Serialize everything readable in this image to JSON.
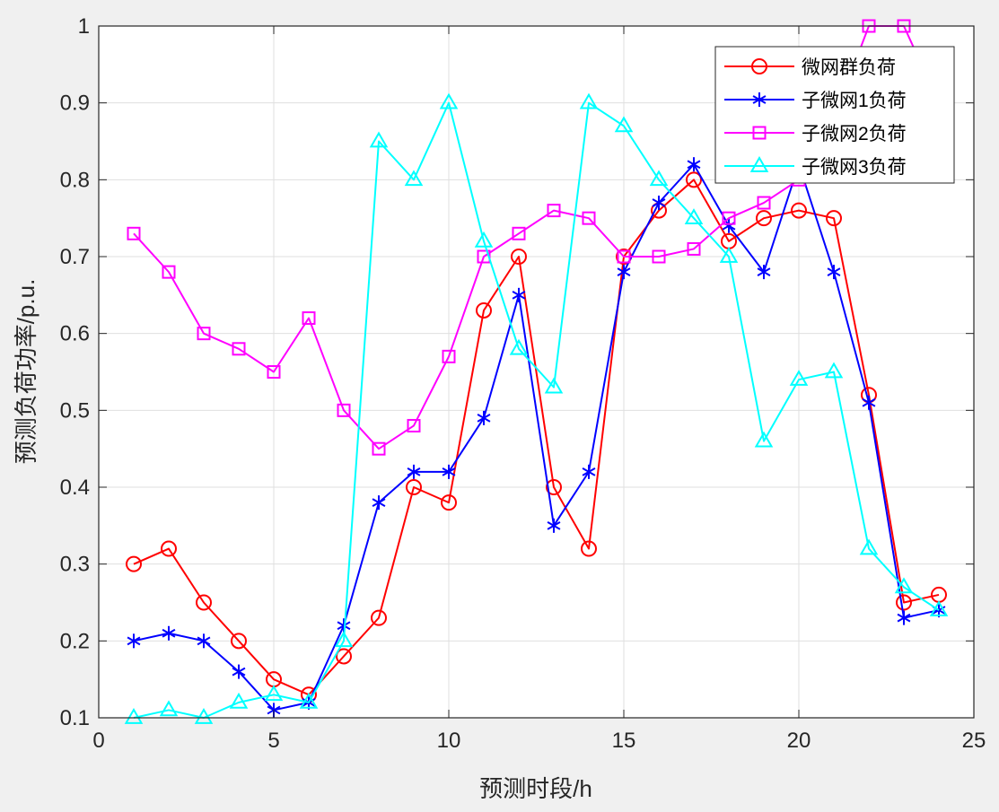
{
  "chart_data": {
    "type": "line",
    "title": "",
    "xlabel": "预测时段/h",
    "ylabel": "预测负荷功率/p.u.",
    "xlim": [
      0,
      25
    ],
    "ylim": [
      0.1,
      1
    ],
    "xticks": [
      0,
      5,
      10,
      15,
      20,
      25
    ],
    "yticks": [
      0.1,
      0.2,
      0.3,
      0.4,
      0.5,
      0.6,
      0.7,
      0.8,
      0.9,
      1
    ],
    "grid": true,
    "legend_position": "top-right",
    "x": [
      1,
      2,
      3,
      4,
      5,
      6,
      7,
      8,
      9,
      10,
      11,
      12,
      13,
      14,
      15,
      16,
      17,
      18,
      19,
      20,
      21,
      22,
      23,
      24
    ],
    "series": [
      {
        "name": "微网群负荷",
        "color": "#ff0000",
        "marker": "circle",
        "values": [
          0.3,
          0.32,
          0.25,
          0.2,
          0.15,
          0.13,
          0.18,
          0.23,
          0.4,
          0.38,
          0.63,
          0.7,
          0.4,
          0.32,
          0.7,
          0.76,
          0.8,
          0.72,
          0.75,
          0.76,
          0.75,
          0.52,
          0.25,
          0.26
        ]
      },
      {
        "name": "子微网1负荷",
        "color": "#0000ff",
        "marker": "asterisk",
        "values": [
          0.2,
          0.21,
          0.2,
          0.16,
          0.11,
          0.12,
          0.22,
          0.38,
          0.42,
          0.42,
          0.49,
          0.65,
          0.35,
          0.42,
          0.68,
          0.77,
          0.82,
          0.74,
          0.68,
          0.82,
          0.68,
          0.51,
          0.23,
          0.24
        ]
      },
      {
        "name": "子微网2负荷",
        "color": "#ff00ff",
        "marker": "square",
        "values": [
          0.73,
          0.68,
          0.6,
          0.58,
          0.55,
          0.62,
          0.5,
          0.45,
          0.48,
          0.57,
          0.7,
          0.73,
          0.76,
          0.75,
          0.7,
          0.7,
          0.71,
          0.75,
          0.77,
          0.8,
          0.88,
          1.0,
          1.0,
          0.9
        ]
      },
      {
        "name": "子微网3负荷",
        "color": "#00ffff",
        "marker": "triangle",
        "values": [
          0.1,
          0.11,
          0.1,
          0.12,
          0.13,
          0.12,
          0.2,
          0.85,
          0.8,
          0.9,
          0.72,
          0.58,
          0.53,
          0.9,
          0.87,
          0.8,
          0.75,
          0.7,
          0.46,
          0.54,
          0.55,
          0.32,
          0.27,
          0.24
        ]
      }
    ]
  }
}
